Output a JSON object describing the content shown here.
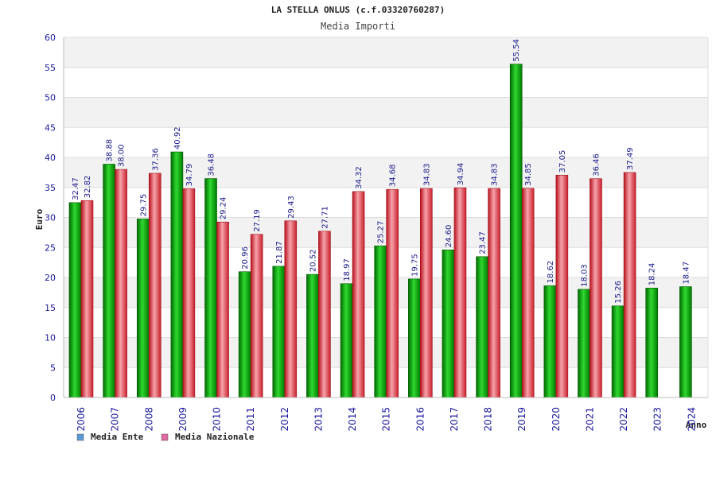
{
  "chart_data": {
    "type": "bar",
    "title": "LA STELLA ONLUS (c.f.03320760287)",
    "subtitle": "Media Importi",
    "xlabel": "Anno",
    "ylabel": "Euro",
    "ylim": [
      0,
      60
    ],
    "yticks": [
      0,
      5,
      10,
      15,
      20,
      25,
      30,
      35,
      40,
      45,
      50,
      55,
      60
    ],
    "grid": true,
    "legend_position": "bottom-left",
    "categories": [
      "2006",
      "2007",
      "2008",
      "2009",
      "2010",
      "2011",
      "2012",
      "2013",
      "2014",
      "2015",
      "2016",
      "2017",
      "2018",
      "2019",
      "2020",
      "2021",
      "2022",
      "2023",
      "2024"
    ],
    "series": [
      {
        "name": "Media Ente",
        "color": "#18a818",
        "legend_color": "#5b9bd5",
        "values": [
          32.47,
          38.88,
          29.75,
          40.92,
          36.48,
          20.96,
          21.87,
          20.52,
          18.97,
          25.27,
          19.75,
          24.6,
          23.47,
          55.54,
          18.62,
          18.03,
          15.26,
          18.24,
          18.47
        ],
        "labels": [
          "32.47",
          "38.88",
          "29.75",
          "40.92",
          "36.48",
          "20.96",
          "21.87",
          "20.52",
          "18.97",
          "25.27",
          "19.75",
          "24.60",
          "23.47",
          "55.54",
          "18.62",
          "18.03",
          "15.26",
          "18.24",
          "18.47"
        ]
      },
      {
        "name": "Media Nazionale",
        "color": "#e0303c",
        "legend_color": "#e06aa0",
        "values": [
          32.82,
          38.0,
          37.36,
          34.79,
          29.24,
          27.19,
          29.43,
          27.71,
          34.32,
          34.68,
          34.83,
          34.94,
          34.83,
          34.85,
          37.05,
          36.46,
          37.49,
          null,
          null
        ],
        "labels": [
          "32.82",
          "38.00",
          "37.36",
          "34.79",
          "29.24",
          "27.19",
          "29.43",
          "27.71",
          "34.32",
          "34.68",
          "34.83",
          "34.94",
          "34.83",
          "34.85",
          "37.05",
          "36.46",
          "37.49",
          "",
          ""
        ]
      }
    ]
  }
}
